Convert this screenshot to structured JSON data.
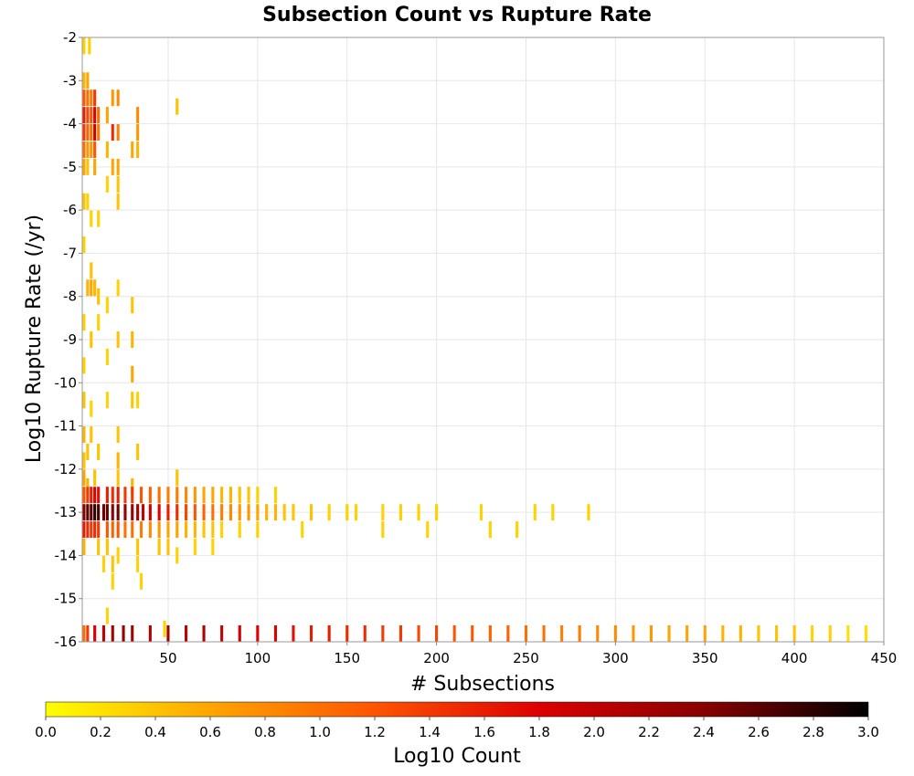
{
  "chart_data": {
    "type": "heatmap",
    "title": "Subsection Count vs Rupture Rate",
    "xlabel": "# Subsections",
    "ylabel": "Log10 Rupture Rate (/yr)",
    "xlim": [
      2,
      450
    ],
    "ylim": [
      -16,
      -2
    ],
    "x_ticks": [
      50,
      100,
      150,
      200,
      250,
      300,
      350,
      400,
      450
    ],
    "y_ticks": [
      -2,
      -3,
      -4,
      -5,
      -6,
      -7,
      -8,
      -9,
      -10,
      -11,
      -12,
      -13,
      -14,
      -15,
      -16
    ],
    "grid": true,
    "colorbar": {
      "label": "Log10 Count",
      "range": [
        0.0,
        3.0
      ],
      "ticks": [
        "0.0",
        "0.2",
        "0.4",
        "0.6",
        "0.8",
        "1.0",
        "1.2",
        "1.4",
        "1.6",
        "1.8",
        "2.0",
        "2.2",
        "2.4",
        "2.6",
        "2.8",
        "3.0"
      ],
      "colors": [
        "#ffff00",
        "#ffa500",
        "#ff5500",
        "#dd0000",
        "#880000",
        "#000000"
      ]
    },
    "cells_note": "each cell: [x (# subsections), y (log10 rate), log10 count]",
    "cells": [
      [
        3,
        -2.2,
        0.3
      ],
      [
        6,
        -2.2,
        0.3
      ],
      [
        3,
        -3.0,
        0.5
      ],
      [
        3,
        -3.4,
        1.2
      ],
      [
        3,
        -3.8,
        1.6
      ],
      [
        3,
        -4.2,
        1.4
      ],
      [
        3,
        -4.6,
        1.0
      ],
      [
        3,
        -5.0,
        0.6
      ],
      [
        5,
        -3.0,
        0.6
      ],
      [
        5,
        -3.4,
        1.0
      ],
      [
        5,
        -3.8,
        1.3
      ],
      [
        5,
        -4.2,
        1.1
      ],
      [
        5,
        -4.6,
        0.7
      ],
      [
        5,
        -5.0,
        0.4
      ],
      [
        7,
        -3.4,
        0.9
      ],
      [
        7,
        -3.8,
        1.2
      ],
      [
        7,
        -4.2,
        1.0
      ],
      [
        7,
        -4.6,
        0.7
      ],
      [
        9,
        -3.4,
        1.4
      ],
      [
        9,
        -3.8,
        1.8
      ],
      [
        9,
        -4.2,
        1.9
      ],
      [
        9,
        -4.6,
        1.2
      ],
      [
        9,
        -5.0,
        0.6
      ],
      [
        11,
        -3.8,
        1.0
      ],
      [
        11,
        -4.2,
        0.9
      ],
      [
        16,
        -3.8,
        0.6
      ],
      [
        16,
        -4.6,
        0.5
      ],
      [
        19,
        -3.4,
        0.7
      ],
      [
        19,
        -4.2,
        1.5
      ],
      [
        19,
        -5.0,
        0.6
      ],
      [
        22,
        -3.4,
        0.8
      ],
      [
        22,
        -4.2,
        0.9
      ],
      [
        22,
        -5.0,
        0.6
      ],
      [
        22,
        -5.8,
        0.4
      ],
      [
        30,
        -4.6,
        0.6
      ],
      [
        33,
        -3.8,
        0.8
      ],
      [
        33,
        -4.2,
        0.7
      ],
      [
        33,
        -4.6,
        0.5
      ],
      [
        55,
        -3.6,
        0.4
      ],
      [
        3,
        -5.8,
        0.4
      ],
      [
        5,
        -5.8,
        0.3
      ],
      [
        16,
        -5.4,
        0.3
      ],
      [
        22,
        -5.4,
        0.4
      ],
      [
        7,
        -6.2,
        0.3
      ],
      [
        11,
        -6.2,
        0.3
      ],
      [
        3,
        -6.8,
        0.3
      ],
      [
        7,
        -7.4,
        0.4
      ],
      [
        5,
        -7.8,
        0.5
      ],
      [
        7,
        -7.8,
        0.6
      ],
      [
        9,
        -7.8,
        0.5
      ],
      [
        11,
        -8.0,
        0.4
      ],
      [
        22,
        -7.8,
        0.3
      ],
      [
        30,
        -8.2,
        0.4
      ],
      [
        16,
        -8.2,
        0.3
      ],
      [
        3,
        -8.6,
        0.3
      ],
      [
        7,
        -9.0,
        0.4
      ],
      [
        11,
        -8.6,
        0.3
      ],
      [
        22,
        -9.0,
        0.4
      ],
      [
        30,
        -9.0,
        0.5
      ],
      [
        16,
        -9.4,
        0.3
      ],
      [
        30,
        -9.8,
        0.6
      ],
      [
        3,
        -9.6,
        0.3
      ],
      [
        3,
        -10.4,
        0.4
      ],
      [
        7,
        -10.6,
        0.3
      ],
      [
        16,
        -10.4,
        0.3
      ],
      [
        30,
        -10.4,
        0.4
      ],
      [
        33,
        -10.4,
        0.3
      ],
      [
        3,
        -11.2,
        0.5
      ],
      [
        5,
        -11.6,
        0.4
      ],
      [
        7,
        -11.2,
        0.4
      ],
      [
        11,
        -11.6,
        0.4
      ],
      [
        22,
        -11.2,
        0.4
      ],
      [
        22,
        -11.8,
        0.5
      ],
      [
        33,
        -11.6,
        0.4
      ],
      [
        3,
        -11.8,
        0.4
      ],
      [
        3,
        -12.2,
        0.6
      ],
      [
        5,
        -12.4,
        0.5
      ],
      [
        9,
        -12.2,
        0.4
      ],
      [
        22,
        -12.2,
        0.4
      ],
      [
        30,
        -12.4,
        0.5
      ],
      [
        55,
        -12.2,
        0.4
      ],
      [
        3,
        -12.6,
        1.2
      ],
      [
        5,
        -12.6,
        1.4
      ],
      [
        7,
        -12.6,
        1.6
      ],
      [
        9,
        -12.6,
        1.8
      ],
      [
        11,
        -12.6,
        1.7
      ],
      [
        16,
        -12.6,
        1.6
      ],
      [
        19,
        -12.6,
        1.5
      ],
      [
        22,
        -12.6,
        1.6
      ],
      [
        26,
        -12.6,
        1.4
      ],
      [
        30,
        -12.6,
        1.4
      ],
      [
        35,
        -12.6,
        1.2
      ],
      [
        40,
        -12.6,
        1.1
      ],
      [
        45,
        -12.6,
        1.0
      ],
      [
        50,
        -12.6,
        0.9
      ],
      [
        55,
        -12.6,
        0.9
      ],
      [
        60,
        -12.6,
        0.8
      ],
      [
        65,
        -12.6,
        0.7
      ],
      [
        70,
        -12.6,
        0.6
      ],
      [
        75,
        -12.6,
        0.6
      ],
      [
        80,
        -12.6,
        0.5
      ],
      [
        85,
        -12.6,
        0.5
      ],
      [
        90,
        -12.6,
        0.4
      ],
      [
        95,
        -12.6,
        0.4
      ],
      [
        100,
        -12.6,
        0.3
      ],
      [
        110,
        -12.6,
        0.3
      ],
      [
        3,
        -13.0,
        2.4
      ],
      [
        5,
        -13.0,
        2.6
      ],
      [
        7,
        -13.0,
        2.6
      ],
      [
        9,
        -13.0,
        2.8
      ],
      [
        11,
        -13.0,
        2.7
      ],
      [
        14,
        -13.0,
        2.5
      ],
      [
        16,
        -13.0,
        2.6
      ],
      [
        19,
        -13.0,
        2.4
      ],
      [
        22,
        -13.0,
        2.5
      ],
      [
        26,
        -13.0,
        2.3
      ],
      [
        30,
        -13.0,
        2.3
      ],
      [
        33,
        -13.0,
        2.2
      ],
      [
        36,
        -13.0,
        2.0
      ],
      [
        40,
        -13.0,
        1.9
      ],
      [
        45,
        -13.0,
        1.8
      ],
      [
        50,
        -13.0,
        1.6
      ],
      [
        55,
        -13.0,
        1.5
      ],
      [
        60,
        -13.0,
        1.3
      ],
      [
        65,
        -13.0,
        1.2
      ],
      [
        70,
        -13.0,
        1.1
      ],
      [
        75,
        -13.0,
        1.0
      ],
      [
        80,
        -13.0,
        0.9
      ],
      [
        85,
        -13.0,
        0.8
      ],
      [
        90,
        -13.0,
        0.7
      ],
      [
        95,
        -13.0,
        0.7
      ],
      [
        100,
        -13.0,
        0.6
      ],
      [
        105,
        -13.0,
        0.5
      ],
      [
        110,
        -13.0,
        0.5
      ],
      [
        115,
        -13.0,
        0.4
      ],
      [
        120,
        -13.0,
        0.4
      ],
      [
        130,
        -13.0,
        0.4
      ],
      [
        140,
        -13.0,
        0.3
      ],
      [
        150,
        -13.0,
        0.3
      ],
      [
        155,
        -13.0,
        0.3
      ],
      [
        170,
        -13.0,
        0.3
      ],
      [
        180,
        -13.0,
        0.3
      ],
      [
        190,
        -13.0,
        0.3
      ],
      [
        200,
        -13.0,
        0.3
      ],
      [
        225,
        -13.0,
        0.3
      ],
      [
        255,
        -13.0,
        0.3
      ],
      [
        265,
        -13.0,
        0.3
      ],
      [
        285,
        -13.0,
        0.3
      ],
      [
        3,
        -13.4,
        1.6
      ],
      [
        5,
        -13.4,
        1.5
      ],
      [
        7,
        -13.4,
        1.4
      ],
      [
        9,
        -13.4,
        1.5
      ],
      [
        11,
        -13.4,
        1.4
      ],
      [
        16,
        -13.4,
        1.2
      ],
      [
        19,
        -13.4,
        1.1
      ],
      [
        22,
        -13.4,
        1.2
      ],
      [
        26,
        -13.4,
        1.0
      ],
      [
        30,
        -13.4,
        1.0
      ],
      [
        35,
        -13.4,
        0.9
      ],
      [
        40,
        -13.4,
        0.8
      ],
      [
        45,
        -13.4,
        0.7
      ],
      [
        50,
        -13.4,
        0.6
      ],
      [
        55,
        -13.4,
        0.6
      ],
      [
        60,
        -13.4,
        0.5
      ],
      [
        65,
        -13.4,
        0.5
      ],
      [
        70,
        -13.4,
        0.4
      ],
      [
        75,
        -13.4,
        0.4
      ],
      [
        80,
        -13.4,
        0.3
      ],
      [
        90,
        -13.4,
        0.3
      ],
      [
        100,
        -13.4,
        0.3
      ],
      [
        125,
        -13.4,
        0.3
      ],
      [
        170,
        -13.4,
        0.3
      ],
      [
        195,
        -13.4,
        0.3
      ],
      [
        230,
        -13.4,
        0.3
      ],
      [
        245,
        -13.4,
        0.3
      ],
      [
        3,
        -13.8,
        0.5
      ],
      [
        11,
        -13.8,
        0.4
      ],
      [
        16,
        -13.8,
        0.4
      ],
      [
        33,
        -13.8,
        0.4
      ],
      [
        45,
        -13.8,
        0.4
      ],
      [
        50,
        -13.8,
        0.4
      ],
      [
        65,
        -13.8,
        0.3
      ],
      [
        75,
        -13.8,
        0.3
      ],
      [
        22,
        -14.0,
        0.3
      ],
      [
        55,
        -14.0,
        0.3
      ],
      [
        14,
        -14.2,
        0.3
      ],
      [
        19,
        -14.2,
        0.4
      ],
      [
        19,
        -14.6,
        0.3
      ],
      [
        33,
        -14.2,
        0.3
      ],
      [
        35,
        -14.6,
        0.3
      ],
      [
        16,
        -15.4,
        0.3
      ],
      [
        48,
        -15.7,
        0.3
      ],
      [
        3,
        -16.0,
        1.0
      ],
      [
        5,
        -16.0,
        1.4
      ],
      [
        9,
        -16.0,
        1.8
      ],
      [
        14,
        -16.0,
        2.0
      ],
      [
        19,
        -16.0,
        2.2
      ],
      [
        25,
        -16.0,
        2.3
      ],
      [
        30,
        -16.0,
        2.2
      ],
      [
        40,
        -16.0,
        2.1
      ],
      [
        50,
        -16.0,
        2.2
      ],
      [
        60,
        -16.0,
        2.0
      ],
      [
        70,
        -16.0,
        2.1
      ],
      [
        80,
        -16.0,
        2.0
      ],
      [
        90,
        -16.0,
        1.9
      ],
      [
        100,
        -16.0,
        1.8
      ],
      [
        110,
        -16.0,
        1.8
      ],
      [
        120,
        -16.0,
        1.7
      ],
      [
        130,
        -16.0,
        1.6
      ],
      [
        140,
        -16.0,
        1.6
      ],
      [
        150,
        -16.0,
        1.5
      ],
      [
        160,
        -16.0,
        1.5
      ],
      [
        170,
        -16.0,
        1.4
      ],
      [
        180,
        -16.0,
        1.4
      ],
      [
        190,
        -16.0,
        1.3
      ],
      [
        200,
        -16.0,
        1.3
      ],
      [
        210,
        -16.0,
        1.2
      ],
      [
        220,
        -16.0,
        1.2
      ],
      [
        230,
        -16.0,
        1.1
      ],
      [
        240,
        -16.0,
        1.1
      ],
      [
        250,
        -16.0,
        1.0
      ],
      [
        260,
        -16.0,
        1.0
      ],
      [
        270,
        -16.0,
        0.9
      ],
      [
        280,
        -16.0,
        0.9
      ],
      [
        290,
        -16.0,
        0.8
      ],
      [
        300,
        -16.0,
        0.8
      ],
      [
        310,
        -16.0,
        0.7
      ],
      [
        320,
        -16.0,
        0.7
      ],
      [
        330,
        -16.0,
        0.6
      ],
      [
        340,
        -16.0,
        0.6
      ],
      [
        350,
        -16.0,
        0.6
      ],
      [
        360,
        -16.0,
        0.5
      ],
      [
        370,
        -16.0,
        0.5
      ],
      [
        380,
        -16.0,
        0.4
      ],
      [
        390,
        -16.0,
        0.4
      ],
      [
        400,
        -16.0,
        0.4
      ],
      [
        410,
        -16.0,
        0.3
      ],
      [
        420,
        -16.0,
        0.3
      ],
      [
        430,
        -16.0,
        0.2
      ],
      [
        440,
        -16.0,
        0.2
      ]
    ]
  }
}
